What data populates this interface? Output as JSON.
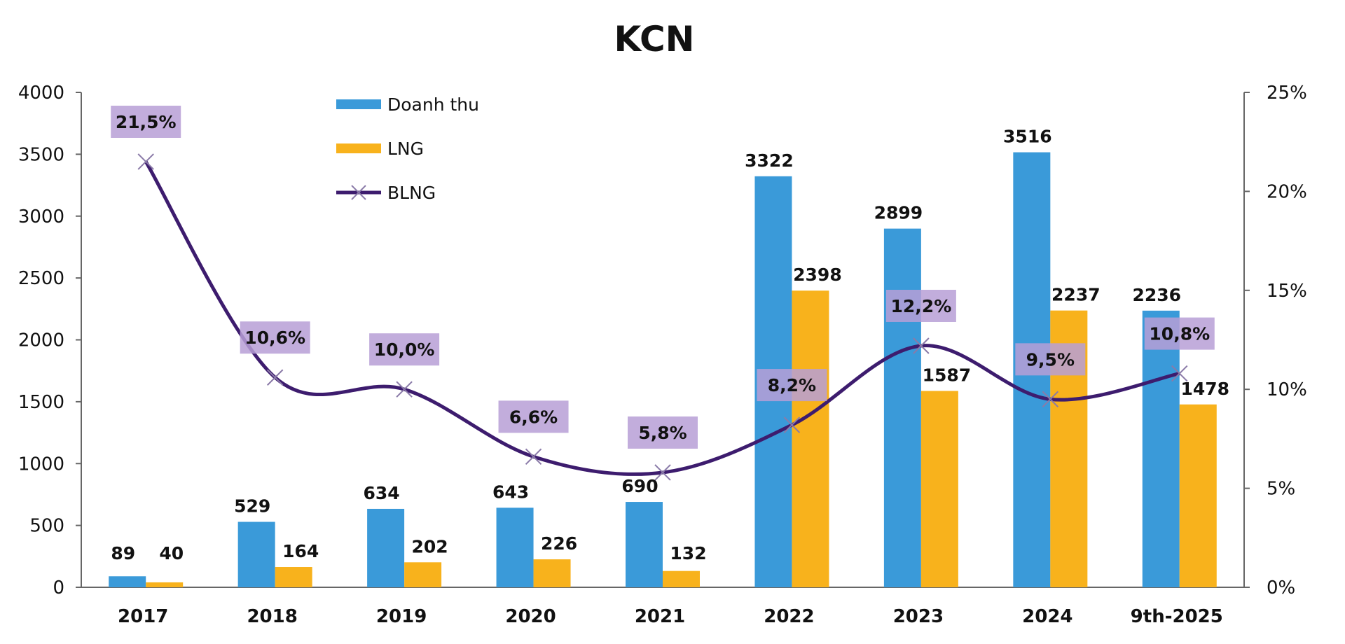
{
  "chart_data": {
    "type": "bar",
    "title": "KCN",
    "categories": [
      "2017",
      "2018",
      "2019",
      "2020",
      "2021",
      "2022",
      "2023",
      "2024",
      "9th-2025"
    ],
    "series": [
      {
        "name": "Doanh thu",
        "type": "bar",
        "axis": "left",
        "color": "#3a9ad9",
        "values": [
          89,
          529,
          634,
          643,
          690,
          3322,
          2899,
          3516,
          2236
        ]
      },
      {
        "name": "LNG",
        "type": "bar",
        "axis": "left",
        "color": "#f8b21c",
        "values": [
          40,
          164,
          202,
          226,
          132,
          2398,
          1587,
          2237,
          1478
        ]
      },
      {
        "name": "BLNG",
        "type": "line",
        "axis": "right",
        "color": "#3d1c6e",
        "marker": "x",
        "values": [
          21.5,
          10.6,
          10.0,
          6.6,
          5.8,
          8.2,
          12.2,
          9.5,
          10.8
        ],
        "labels": [
          "21,5%",
          "10,6%",
          "10,0%",
          "6,6%",
          "5,8%",
          "8,2%",
          "12,2%",
          "9,5%",
          "10,8%"
        ]
      }
    ],
    "left_axis": {
      "ylim": [
        0,
        4000
      ],
      "ticks": [
        "0",
        "500",
        "1000",
        "1500",
        "2000",
        "2500",
        "3000",
        "3500",
        "4000"
      ]
    },
    "right_axis": {
      "ylim": [
        0,
        25
      ],
      "ticks": [
        "0%",
        "5%",
        "10%",
        "15%",
        "20%",
        "25%"
      ]
    },
    "legend": {
      "placement": "top-left-inside",
      "entries": [
        "Doanh thu",
        "LNG",
        "BLNG"
      ]
    },
    "grid": false,
    "label_box_color": "#b79fd6"
  }
}
